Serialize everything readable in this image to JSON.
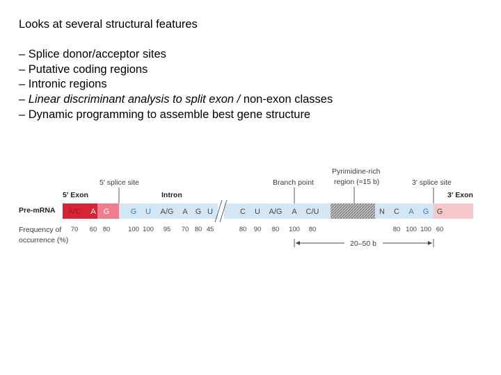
{
  "heading": "Looks at several structural features",
  "bullets": [
    {
      "pre": "– ",
      "italic": "",
      "post": "Splice donor/acceptor sites"
    },
    {
      "pre": "– ",
      "italic": "",
      "post": "Putative coding regions"
    },
    {
      "pre": "– ",
      "italic": "",
      "post": "Intronic regions"
    },
    {
      "pre": "– ",
      "italic": "Linear discriminant analysis to split exon / ",
      "post": "non-exon classes"
    },
    {
      "pre": "– ",
      "italic": "",
      "post": "Dynamic programming to assemble best gene structure"
    }
  ],
  "diagram": {
    "label_5_exon": "5′ Exon",
    "label_3_exon": "3′ Exon",
    "label_intron": "Intron",
    "label_5_splice": "5′ splice site",
    "label_3_splice": "3′ splice site",
    "label_branch": "Branch point",
    "label_pyr_line1": "Pyrimidine-rich",
    "label_pyr_line2": "region (≈15 b)",
    "label_premrna": "Pre-mRNA",
    "label_freq_line1": "Frequency of",
    "label_freq_line2": "occurrence (%)",
    "distance": "20–50 b",
    "colors": {
      "exon5": "#e03040",
      "exon5_light": "#f08090",
      "intron": "#cfe4f4",
      "exon3": "#f4c6c8",
      "nuc_red": "#c0102a",
      "nuc_blue": "#2a7fc0",
      "nuc_dark": "#444444"
    },
    "nucleotides": [
      {
        "base": "A/C",
        "freq": "70",
        "color": "red-on-dark"
      },
      {
        "base": "A",
        "freq": "60",
        "color": "white"
      },
      {
        "base": "G",
        "freq": "80",
        "color": "white"
      },
      {
        "base": "G",
        "freq": "100",
        "color": "blue"
      },
      {
        "base": "U",
        "freq": "100",
        "color": "blue"
      },
      {
        "base": "A/G",
        "freq": "95",
        "color": "dark"
      },
      {
        "base": "A",
        "freq": "70",
        "color": "dark"
      },
      {
        "base": "G",
        "freq": "80",
        "color": "dark"
      },
      {
        "base": "U",
        "freq": "45",
        "color": "dark"
      },
      {
        "base": "C",
        "freq": "80",
        "color": "dark"
      },
      {
        "base": "U",
        "freq": "90",
        "color": "dark"
      },
      {
        "base": "A/G",
        "freq": "80",
        "color": "dark"
      },
      {
        "base": "A",
        "freq": "100",
        "color": "dark"
      },
      {
        "base": "C/U",
        "freq": "80",
        "color": "dark"
      },
      {
        "base": "N",
        "freq": "",
        "color": "dark"
      },
      {
        "base": "C",
        "freq": "80",
        "color": "dark"
      },
      {
        "base": "A",
        "freq": "100",
        "color": "blue"
      },
      {
        "base": "G",
        "freq": "100",
        "color": "blue"
      },
      {
        "base": "G",
        "freq": "60",
        "color": "dark"
      }
    ]
  }
}
